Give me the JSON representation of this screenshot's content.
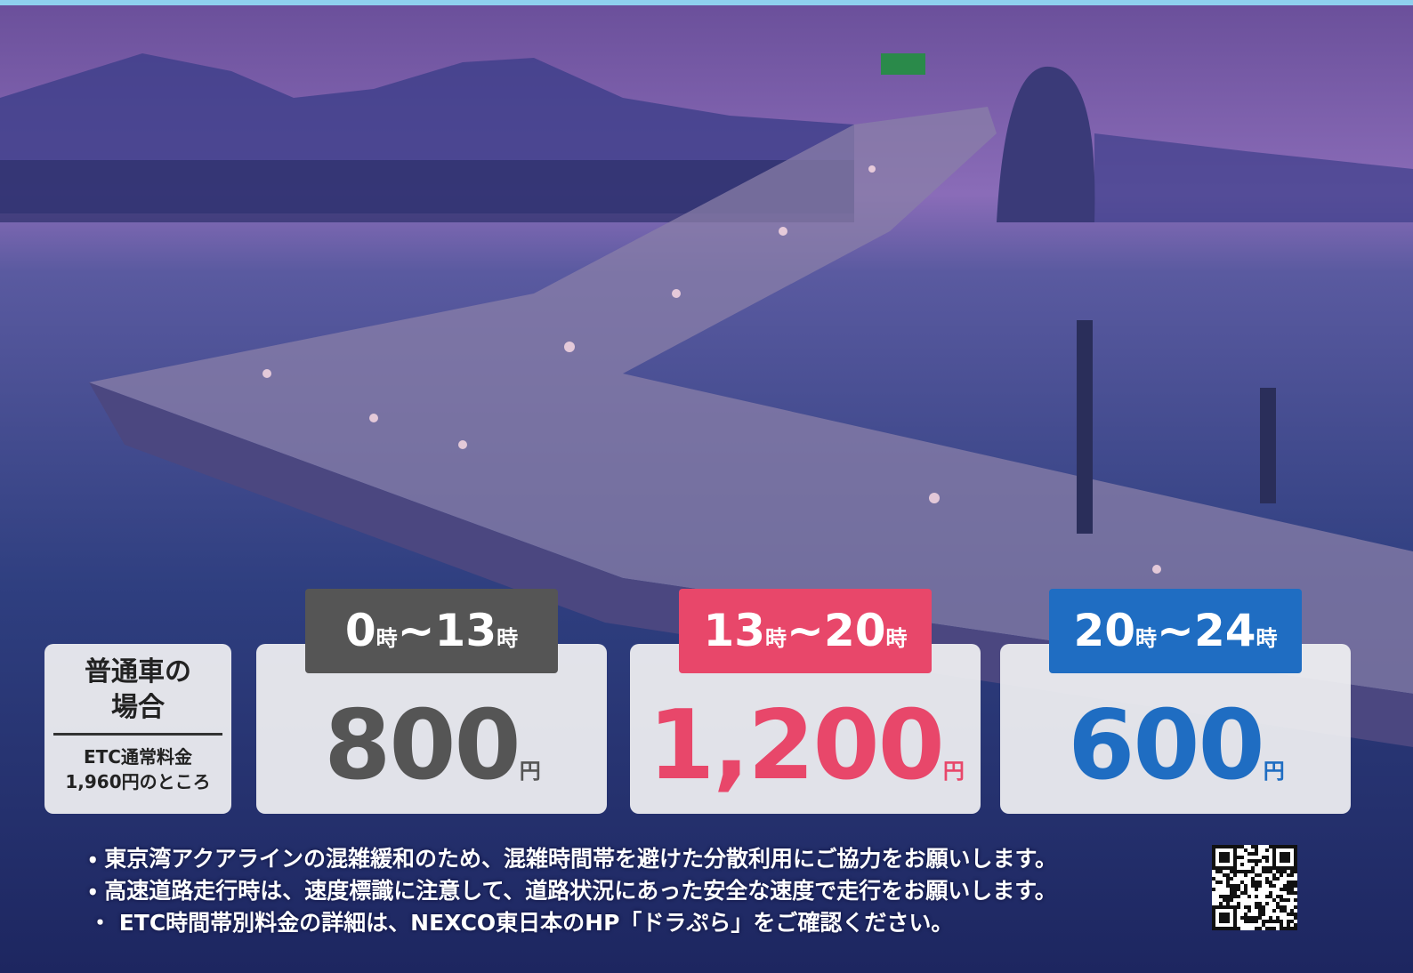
{
  "fare_info": {
    "vehicle": [
      "普通車の",
      "場合"
    ],
    "regular_fare": [
      "ETC通常料金",
      "1,960円のところ"
    ]
  },
  "time_slots": [
    {
      "from": "0",
      "to": "13",
      "hour_unit": "時",
      "separator": "~",
      "price": "800",
      "currency": "円"
    },
    {
      "from": "13",
      "to": "20",
      "hour_unit": "時",
      "separator": "~",
      "price": "1,200",
      "currency": "円"
    },
    {
      "from": "20",
      "to": "24",
      "hour_unit": "時",
      "separator": "~",
      "price": "600",
      "currency": "円"
    }
  ],
  "notes": [
    "・ 東京湾アクアラインの混雑緩和のため、混雑時間帯を避けた分散利用にご協力をお願いします。",
    "・ 高速道路走行時は、速度標識に注意して、道路状況にあった安全な速度で走行をお願いします。",
    "・ ETC時間帯別料金の詳細は、NEXCO東日本のHP「ドラぷら」をご確認ください。"
  ]
}
